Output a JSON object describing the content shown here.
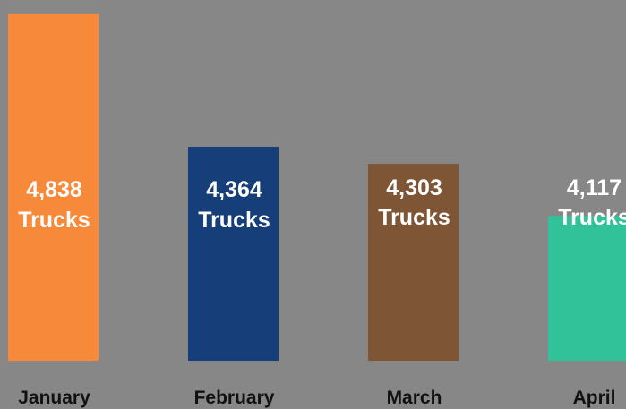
{
  "chart_data": {
    "type": "bar",
    "categories": [
      "January",
      "February",
      "March",
      "April"
    ],
    "values": [
      4838,
      4364,
      4303,
      4117
    ],
    "value_labels": [
      "4,838",
      "4,364",
      "4,303",
      "4,117"
    ],
    "unit_label": "Trucks",
    "ylim": [
      3600,
      4850
    ],
    "colors": [
      "#F78A3A",
      "#163F7A",
      "#7E5535",
      "#31C29A"
    ],
    "background": "#878787",
    "grid": false,
    "legend": "none",
    "title": "",
    "xlabel": "",
    "ylabel": ""
  }
}
